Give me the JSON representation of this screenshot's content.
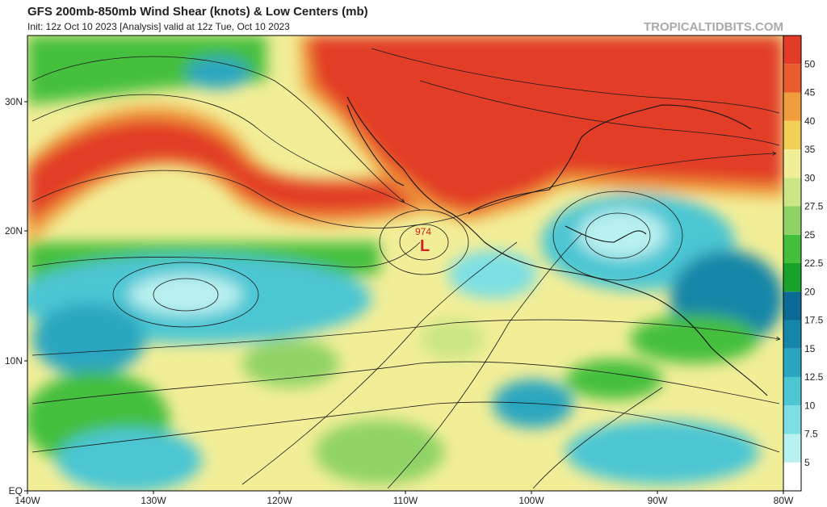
{
  "header": {
    "title": "GFS 200mb-850mb Wind Shear (knots) & Low Centers (mb)",
    "subtitle": "Init: 12z Oct 10 2023   [Analysis]   valid at 12z Tue, Oct 10 2023",
    "source": "TROPICALTIDBITS.COM"
  },
  "map": {
    "lat_labels": [
      "30N",
      "20N",
      "10N",
      "EQ"
    ],
    "lon_labels": [
      "140W",
      "130W",
      "120W",
      "110W",
      "100W",
      "90W",
      "80W"
    ],
    "low_center": {
      "pressure": "974",
      "symbol": "L"
    }
  },
  "colorbar": {
    "labels": [
      "5",
      "7.5",
      "10",
      "12.5",
      "15",
      "17.5",
      "20",
      "22.5",
      "25",
      "27.5",
      "30",
      "35",
      "40",
      "45",
      "50"
    ],
    "colors": [
      "#ffffff",
      "#b9f0f0",
      "#7ddfe3",
      "#4cc6d3",
      "#2aa6c0",
      "#1586a8",
      "#0b6a94",
      "#19a22a",
      "#44bf3c",
      "#8fd366",
      "#cbe684",
      "#f2ee98",
      "#f2cf55",
      "#f09d3e",
      "#e85c2e",
      "#e23c28"
    ]
  }
}
